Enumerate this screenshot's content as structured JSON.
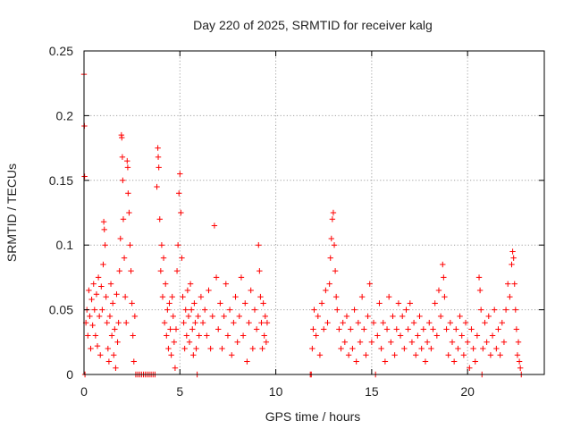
{
  "chart_data": {
    "type": "scatter",
    "title": "Day 220 of 2025, SRMTID for receiver kalg",
    "xlabel": "GPS time / hours",
    "ylabel": "SRMTID / TECUs",
    "xlim": [
      0,
      24
    ],
    "ylim": [
      0,
      0.25
    ],
    "xticks": [
      0,
      5,
      10,
      15,
      20
    ],
    "xtick_labels": [
      "0",
      "5",
      "10",
      "15",
      "20"
    ],
    "yticks": [
      0,
      0.05,
      0.1,
      0.15,
      0.2,
      0.25
    ],
    "ytick_labels": [
      "0",
      "0.05",
      "0.1",
      "0.15",
      "0.2",
      "0.25"
    ],
    "grid": true,
    "marker": "+",
    "color": "#ff0000",
    "series": [
      {
        "name": "kalg",
        "points": [
          [
            0.0,
            0.232
          ],
          [
            0.02,
            0.192
          ],
          [
            0.03,
            0.153
          ],
          [
            0.05,
            0.0
          ],
          [
            0.1,
            0.04
          ],
          [
            0.15,
            0.05
          ],
          [
            0.2,
            0.03
          ],
          [
            0.25,
            0.065
          ],
          [
            0.3,
            0.045
          ],
          [
            0.35,
            0.02
          ],
          [
            0.4,
            0.058
          ],
          [
            0.45,
            0.038
          ],
          [
            0.5,
            0.07
          ],
          [
            0.55,
            0.05
          ],
          [
            0.6,
            0.03
          ],
          [
            0.65,
            0.062
          ],
          [
            0.7,
            0.022
          ],
          [
            0.75,
            0.075
          ],
          [
            0.8,
            0.045
          ],
          [
            0.85,
            0.015
          ],
          [
            0.9,
            0.068
          ],
          [
            0.95,
            0.05
          ],
          [
            1.0,
            0.085
          ],
          [
            1.03,
            0.118
          ],
          [
            1.06,
            0.112
          ],
          [
            1.1,
            0.1
          ],
          [
            1.15,
            0.06
          ],
          [
            1.2,
            0.04
          ],
          [
            1.25,
            0.02
          ],
          [
            1.3,
            0.01
          ],
          [
            1.35,
            0.045
          ],
          [
            1.4,
            0.07
          ],
          [
            1.45,
            0.03
          ],
          [
            1.5,
            0.055
          ],
          [
            1.55,
            0.015
          ],
          [
            1.6,
            0.035
          ],
          [
            1.65,
            0.005
          ],
          [
            1.7,
            0.062
          ],
          [
            1.75,
            0.025
          ],
          [
            1.8,
            0.04
          ],
          [
            1.85,
            0.08
          ],
          [
            1.9,
            0.105
          ],
          [
            1.95,
            0.185
          ],
          [
            1.97,
            0.183
          ],
          [
            2.0,
            0.168
          ],
          [
            2.02,
            0.15
          ],
          [
            2.05,
            0.12
          ],
          [
            2.1,
            0.09
          ],
          [
            2.15,
            0.06
          ],
          [
            2.2,
            0.04
          ],
          [
            2.25,
            0.165
          ],
          [
            2.28,
            0.16
          ],
          [
            2.3,
            0.14
          ],
          [
            2.35,
            0.125
          ],
          [
            2.4,
            0.1
          ],
          [
            2.45,
            0.08
          ],
          [
            2.5,
            0.055
          ],
          [
            2.55,
            0.03
          ],
          [
            2.6,
            0.01
          ],
          [
            2.65,
            0.045
          ],
          [
            2.7,
            0.0
          ],
          [
            2.8,
            0.0
          ],
          [
            2.9,
            0.0
          ],
          [
            3.0,
            0.0
          ],
          [
            3.1,
            0.0
          ],
          [
            3.2,
            0.0
          ],
          [
            3.3,
            0.0
          ],
          [
            3.4,
            0.0
          ],
          [
            3.5,
            0.0
          ],
          [
            3.6,
            0.0
          ],
          [
            3.7,
            0.0
          ],
          [
            3.8,
            0.145
          ],
          [
            3.85,
            0.175
          ],
          [
            3.87,
            0.168
          ],
          [
            3.9,
            0.16
          ],
          [
            3.95,
            0.12
          ],
          [
            4.0,
            0.08
          ],
          [
            4.05,
            0.1
          ],
          [
            4.1,
            0.06
          ],
          [
            4.15,
            0.09
          ],
          [
            4.2,
            0.04
          ],
          [
            4.25,
            0.07
          ],
          [
            4.3,
            0.03
          ],
          [
            4.35,
            0.05
          ],
          [
            4.4,
            0.02
          ],
          [
            4.45,
            0.055
          ],
          [
            4.5,
            0.035
          ],
          [
            4.55,
            0.015
          ],
          [
            4.6,
            0.06
          ],
          [
            4.65,
            0.045
          ],
          [
            4.7,
            0.025
          ],
          [
            4.75,
            0.005
          ],
          [
            4.8,
            0.035
          ],
          [
            4.85,
            0.08
          ],
          [
            4.9,
            0.1
          ],
          [
            4.95,
            0.14
          ],
          [
            5.0,
            0.155
          ],
          [
            5.05,
            0.125
          ],
          [
            5.1,
            0.09
          ],
          [
            5.15,
            0.06
          ],
          [
            5.2,
            0.04
          ],
          [
            5.25,
            0.02
          ],
          [
            5.3,
            0.05
          ],
          [
            5.35,
            0.03
          ],
          [
            5.4,
            0.065
          ],
          [
            5.45,
            0.045
          ],
          [
            5.5,
            0.025
          ],
          [
            5.55,
            0.07
          ],
          [
            5.6,
            0.05
          ],
          [
            5.65,
            0.035
          ],
          [
            5.7,
            0.015
          ],
          [
            5.75,
            0.055
          ],
          [
            5.8,
            0.04
          ],
          [
            5.85,
            0.02
          ],
          [
            5.9,
            0.0
          ],
          [
            5.95,
            0.045
          ],
          [
            6.0,
            0.03
          ],
          [
            6.1,
            0.06
          ],
          [
            6.2,
            0.04
          ],
          [
            6.3,
            0.05
          ],
          [
            6.4,
            0.03
          ],
          [
            6.5,
            0.065
          ],
          [
            6.6,
            0.02
          ],
          [
            6.7,
            0.045
          ],
          [
            6.8,
            0.115
          ],
          [
            6.9,
            0.075
          ],
          [
            7.0,
            0.035
          ],
          [
            7.1,
            0.055
          ],
          [
            7.2,
            0.02
          ],
          [
            7.3,
            0.045
          ],
          [
            7.4,
            0.07
          ],
          [
            7.5,
            0.03
          ],
          [
            7.6,
            0.05
          ],
          [
            7.7,
            0.015
          ],
          [
            7.8,
            0.04
          ],
          [
            7.9,
            0.06
          ],
          [
            8.0,
            0.025
          ],
          [
            8.1,
            0.045
          ],
          [
            8.2,
            0.075
          ],
          [
            8.3,
            0.03
          ],
          [
            8.4,
            0.055
          ],
          [
            8.5,
            0.01
          ],
          [
            8.6,
            0.04
          ],
          [
            8.7,
            0.065
          ],
          [
            8.8,
            0.02
          ],
          [
            8.9,
            0.05
          ],
          [
            9.0,
            0.035
          ],
          [
            9.1,
            0.1
          ],
          [
            9.15,
            0.08
          ],
          [
            9.2,
            0.06
          ],
          [
            9.25,
            0.04
          ],
          [
            9.3,
            0.02
          ],
          [
            9.35,
            0.055
          ],
          [
            9.4,
            0.03
          ],
          [
            9.45,
            0.045
          ],
          [
            9.5,
            0.025
          ],
          [
            9.55,
            0.04
          ],
          [
            11.8,
            0.0
          ],
          [
            11.85,
            0.0
          ],
          [
            11.9,
            0.02
          ],
          [
            11.95,
            0.035
          ],
          [
            12.0,
            0.05
          ],
          [
            12.1,
            0.03
          ],
          [
            12.2,
            0.045
          ],
          [
            12.3,
            0.015
          ],
          [
            12.4,
            0.055
          ],
          [
            12.5,
            0.035
          ],
          [
            12.6,
            0.065
          ],
          [
            12.7,
            0.04
          ],
          [
            12.8,
            0.07
          ],
          [
            12.85,
            0.09
          ],
          [
            12.9,
            0.105
          ],
          [
            12.95,
            0.12
          ],
          [
            13.0,
            0.125
          ],
          [
            13.05,
            0.1
          ],
          [
            13.1,
            0.08
          ],
          [
            13.15,
            0.06
          ],
          [
            13.2,
            0.05
          ],
          [
            13.3,
            0.035
          ],
          [
            13.4,
            0.02
          ],
          [
            13.5,
            0.04
          ],
          [
            13.6,
            0.025
          ],
          [
            13.7,
            0.045
          ],
          [
            13.8,
            0.015
          ],
          [
            13.9,
            0.035
          ],
          [
            14.0,
            0.02
          ],
          [
            14.1,
            0.05
          ],
          [
            14.2,
            0.01
          ],
          [
            14.3,
            0.04
          ],
          [
            14.4,
            0.025
          ],
          [
            14.5,
            0.06
          ],
          [
            14.6,
            0.035
          ],
          [
            14.7,
            0.015
          ],
          [
            14.8,
            0.045
          ],
          [
            14.9,
            0.07
          ],
          [
            15.0,
            0.025
          ],
          [
            15.1,
            0.04
          ],
          [
            15.2,
            0.0
          ],
          [
            15.3,
            0.03
          ],
          [
            15.4,
            0.055
          ],
          [
            15.5,
            0.02
          ],
          [
            15.6,
            0.04
          ],
          [
            15.7,
            0.01
          ],
          [
            15.8,
            0.035
          ],
          [
            15.9,
            0.06
          ],
          [
            16.0,
            0.025
          ],
          [
            16.1,
            0.045
          ],
          [
            16.2,
            0.015
          ],
          [
            16.3,
            0.035
          ],
          [
            16.4,
            0.055
          ],
          [
            16.5,
            0.03
          ],
          [
            16.6,
            0.045
          ],
          [
            16.7,
            0.02
          ],
          [
            16.8,
            0.05
          ],
          [
            16.9,
            0.035
          ],
          [
            17.0,
            0.055
          ],
          [
            17.1,
            0.025
          ],
          [
            17.2,
            0.04
          ],
          [
            17.3,
            0.015
          ],
          [
            17.4,
            0.03
          ],
          [
            17.5,
            0.045
          ],
          [
            17.6,
            0.02
          ],
          [
            17.7,
            0.035
          ],
          [
            17.8,
            0.01
          ],
          [
            17.9,
            0.025
          ],
          [
            18.0,
            0.04
          ],
          [
            18.1,
            0.02
          ],
          [
            18.2,
            0.035
          ],
          [
            18.3,
            0.055
          ],
          [
            18.4,
            0.03
          ],
          [
            18.5,
            0.065
          ],
          [
            18.6,
            0.045
          ],
          [
            18.7,
            0.085
          ],
          [
            18.75,
            0.075
          ],
          [
            18.8,
            0.06
          ],
          [
            18.9,
            0.035
          ],
          [
            19.0,
            0.015
          ],
          [
            19.1,
            0.04
          ],
          [
            19.2,
            0.025
          ],
          [
            19.3,
            0.01
          ],
          [
            19.4,
            0.035
          ],
          [
            19.5,
            0.02
          ],
          [
            19.6,
            0.045
          ],
          [
            19.7,
            0.03
          ],
          [
            19.8,
            0.015
          ],
          [
            19.9,
            0.04
          ],
          [
            20.0,
            0.025
          ],
          [
            20.1,
            0.005
          ],
          [
            20.2,
            0.035
          ],
          [
            20.3,
            0.02
          ],
          [
            20.4,
            0.01
          ],
          [
            20.5,
            0.03
          ],
          [
            20.6,
            0.075
          ],
          [
            20.65,
            0.065
          ],
          [
            20.7,
            0.05
          ],
          [
            20.75,
            0.0
          ],
          [
            20.8,
            0.02
          ],
          [
            20.9,
            0.04
          ],
          [
            21.0,
            0.025
          ],
          [
            21.1,
            0.045
          ],
          [
            21.2,
            0.015
          ],
          [
            21.3,
            0.03
          ],
          [
            21.4,
            0.05
          ],
          [
            21.5,
            0.02
          ],
          [
            21.6,
            0.035
          ],
          [
            21.7,
            0.015
          ],
          [
            21.8,
            0.04
          ],
          [
            21.9,
            0.025
          ],
          [
            22.0,
            0.05
          ],
          [
            22.1,
            0.07
          ],
          [
            22.2,
            0.06
          ],
          [
            22.3,
            0.085
          ],
          [
            22.35,
            0.095
          ],
          [
            22.4,
            0.09
          ],
          [
            22.45,
            0.07
          ],
          [
            22.5,
            0.05
          ],
          [
            22.55,
            0.035
          ],
          [
            22.6,
            0.015
          ],
          [
            22.65,
            0.025
          ],
          [
            22.7,
            0.01
          ],
          [
            22.75,
            0.005
          ],
          [
            22.8,
            0.0
          ]
        ]
      }
    ]
  }
}
